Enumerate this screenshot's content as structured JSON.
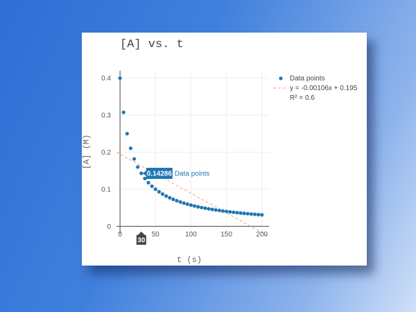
{
  "chart_data": {
    "type": "scatter",
    "title": "[A] vs. t",
    "xlabel": "t (s)",
    "ylabel": "[A] (M)",
    "xlim": [
      -5,
      210
    ],
    "ylim": [
      -0.02,
      0.42
    ],
    "x_ticks": [
      "0",
      "50",
      "100",
      "150",
      "200"
    ],
    "x_tick_values": [
      0,
      50,
      100,
      150,
      200
    ],
    "y_ticks": [
      "0",
      "0.1",
      "0.2",
      "0.3",
      "0.4"
    ],
    "y_tick_values": [
      0,
      0.1,
      0.2,
      0.3,
      0.4
    ],
    "grid": true,
    "legend_position": "top-right",
    "series": [
      {
        "name": "Data points",
        "color": "#1f77b4",
        "x": [
          0,
          5,
          10,
          15,
          20,
          25,
          30,
          35,
          40,
          45,
          50,
          55,
          60,
          65,
          70,
          75,
          80,
          85,
          90,
          95,
          100,
          105,
          110,
          115,
          120,
          125,
          130,
          135,
          140,
          145,
          150,
          155,
          160,
          165,
          170,
          175,
          180,
          185,
          190,
          195,
          200
        ],
        "y": [
          0.4,
          0.3077,
          0.25,
          0.2105,
          0.1818,
          0.16,
          0.1429,
          0.129,
          0.1176,
          0.1081,
          0.1,
          0.093,
          0.087,
          0.0816,
          0.0769,
          0.0727,
          0.069,
          0.0656,
          0.0625,
          0.0597,
          0.0571,
          0.0548,
          0.0526,
          0.0506,
          0.0488,
          0.0471,
          0.0455,
          0.044,
          0.0426,
          0.0412,
          0.04,
          0.0388,
          0.0377,
          0.0367,
          0.0357,
          0.0348,
          0.0339,
          0.033,
          0.0323,
          0.0315,
          0.0308
        ]
      },
      {
        "name": "y = -0.00106x + 0.195",
        "type": "line",
        "style": "dashed",
        "color": "#ff9f6b",
        "x": [
          -5,
          210
        ],
        "y": [
          0.2003,
          -0.0276
        ]
      }
    ],
    "legend": {
      "entries": [
        "Data points",
        "y = -0.00106x + 0.195",
        "R² = 0.6"
      ]
    },
    "hover": {
      "x": 30,
      "y": 0.14286,
      "value_label": "0.14286",
      "series_label": "Data points",
      "x_label": "30"
    }
  }
}
